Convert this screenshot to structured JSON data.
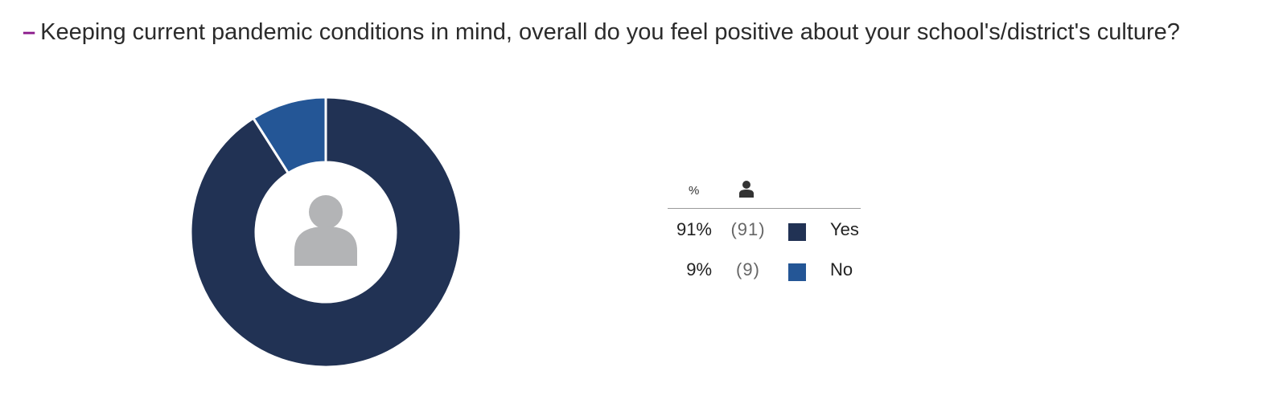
{
  "question": {
    "dash": "–",
    "text": "Keeping current pandemic conditions in mind, overall do you feel positive about your school's/district's culture?"
  },
  "legend": {
    "percent_header": "%",
    "count_header_icon": "person-icon"
  },
  "colors": {
    "yes": "#213254",
    "no": "#245696",
    "center_icon": "#b3b4b6",
    "dash": "#8b1a8b"
  },
  "chart_data": {
    "type": "pie",
    "style": "donut",
    "center_icon": "person-icon",
    "title": "",
    "slices": [
      {
        "label": "Yes",
        "percent": "91%",
        "count": "(91)",
        "value": 91
      },
      {
        "label": "No",
        "percent": "9%",
        "count": "(9)",
        "value": 9
      }
    ]
  }
}
